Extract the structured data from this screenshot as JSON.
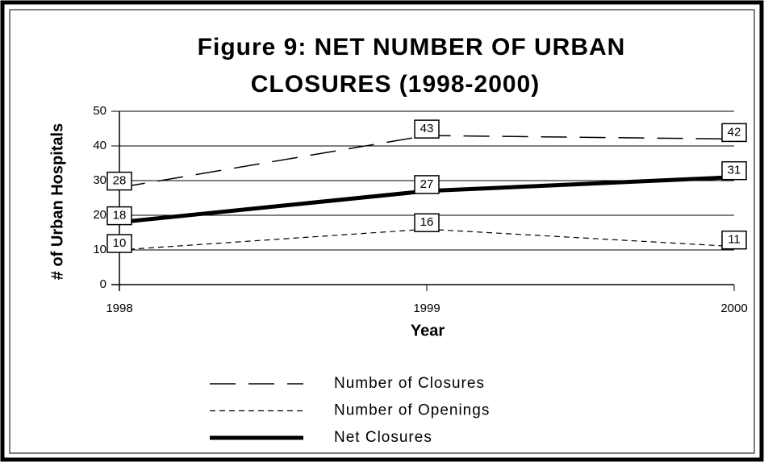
{
  "chart_data": {
    "type": "line",
    "title": [
      "Figure 9: NET NUMBER OF URBAN",
      "CLOSURES (1998-2000)"
    ],
    "x_label": "Year",
    "y_label": "# of Urban Hospitals",
    "x": [
      1998,
      1999,
      2000
    ],
    "xlim": [
      1998,
      2000
    ],
    "xticks": [
      1998,
      1999,
      2000
    ],
    "ylim": [
      0,
      50
    ],
    "yticks": [
      0,
      10,
      20,
      30,
      40,
      50
    ],
    "grid": true,
    "legend": "bottom",
    "series": [
      {
        "name": "Number of Closures",
        "color": "#000000",
        "style": "long-dash",
        "values": [
          28,
          43,
          42
        ]
      },
      {
        "name": "Number of Openings",
        "color": "#000000",
        "style": "short-dash",
        "values": [
          10,
          16,
          11
        ]
      },
      {
        "name": "Net Closures",
        "color": "#000000",
        "style": "solid-thick",
        "values": [
          18,
          27,
          31
        ]
      }
    ]
  }
}
